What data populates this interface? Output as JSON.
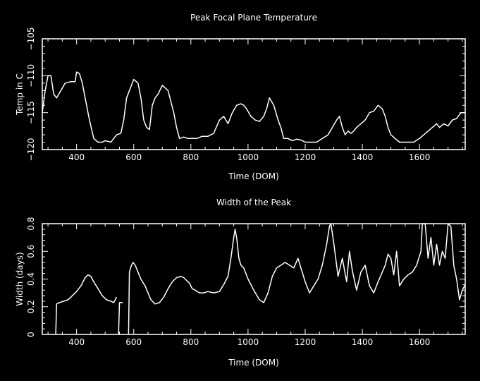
{
  "chart_data": [
    {
      "type": "line",
      "title": "Peak Focal Plane Temperature",
      "xlabel": "Time (DOM)",
      "ylabel": "Temp in C",
      "xlim": [
        280,
        1760
      ],
      "ylim": [
        -120,
        -105
      ],
      "xticks": [
        400,
        600,
        800,
        1000,
        1200,
        1400,
        1600
      ],
      "yticks": [
        -120,
        -115,
        -110,
        -105
      ],
      "xtick_labels": [
        "400",
        "600",
        "800",
        "1000",
        "1200",
        "1400",
        "1600"
      ],
      "ytick_labels": [
        "−120",
        "−115",
        "−110",
        "−105"
      ],
      "grid": false,
      "color": "#ffffff",
      "x": [
        280,
        290,
        300,
        310,
        320,
        330,
        345,
        360,
        380,
        395,
        400,
        410,
        420,
        430,
        445,
        460,
        475,
        490,
        500,
        520,
        540,
        555,
        565,
        575,
        585,
        600,
        615,
        625,
        635,
        645,
        655,
        665,
        675,
        685,
        700,
        720,
        740,
        750,
        760,
        775,
        790,
        805,
        820,
        840,
        860,
        880,
        900,
        915,
        930,
        945,
        960,
        975,
        985,
        995,
        1010,
        1025,
        1040,
        1055,
        1065,
        1075,
        1090,
        1105,
        1115,
        1125,
        1140,
        1155,
        1170,
        1185,
        1200,
        1220,
        1240,
        1260,
        1280,
        1295,
        1310,
        1320,
        1330,
        1340,
        1350,
        1360,
        1370,
        1380,
        1395,
        1410,
        1425,
        1440,
        1455,
        1470,
        1480,
        1490,
        1500,
        1515,
        1530,
        1545,
        1560,
        1580,
        1600,
        1615,
        1630,
        1645,
        1660,
        1670,
        1685,
        1700,
        1715,
        1730,
        1745,
        1760
      ],
      "y": [
        -115,
        -112,
        -110,
        -110,
        -112.5,
        -113,
        -112,
        -111,
        -110.8,
        -110.8,
        -109.5,
        -109.7,
        -111,
        -113,
        -116,
        -118.5,
        -119,
        -119,
        -118.8,
        -119,
        -118,
        -117.8,
        -116,
        -113,
        -112,
        -110.5,
        -111,
        -113,
        -116,
        -117,
        -117.3,
        -114,
        -113,
        -112.5,
        -111.3,
        -112,
        -115,
        -117,
        -118.5,
        -118.3,
        -118.5,
        -118.5,
        -118.5,
        -118.2,
        -118.2,
        -117.8,
        -116,
        -115.5,
        -116.5,
        -115,
        -114,
        -113.8,
        -114,
        -114.5,
        -115.5,
        -116,
        -116.2,
        -115.5,
        -114.5,
        -113,
        -114,
        -116,
        -117,
        -118.5,
        -118.5,
        -118.8,
        -118.6,
        -118.7,
        -119,
        -119,
        -119,
        -118.5,
        -118,
        -117,
        -116,
        -115.5,
        -117,
        -118,
        -117.5,
        -117.8,
        -117.5,
        -117,
        -116.5,
        -116,
        -115,
        -114.8,
        -114,
        -114.5,
        -115.5,
        -117,
        -118,
        -118.5,
        -119,
        -119,
        -119,
        -119,
        -118.5,
        -118,
        -117.5,
        -117,
        -116.5,
        -117,
        -116.5,
        -116.8,
        -116,
        -115.8,
        -115,
        -115
      ]
    },
    {
      "type": "line",
      "title": "Width of the Peak",
      "xlabel": "Time (DOM)",
      "ylabel": "Width (days)",
      "xlim": [
        280,
        1760
      ],
      "ylim": [
        0,
        0.8
      ],
      "xticks": [
        400,
        600,
        800,
        1000,
        1200,
        1400,
        1600
      ],
      "yticks": [
        0,
        0.2,
        0.4,
        0.6,
        0.8
      ],
      "xtick_labels": [
        "400",
        "600",
        "800",
        "1000",
        "1200",
        "1400",
        "1600"
      ],
      "ytick_labels": [
        "0",
        "0.2",
        "0.4",
        "0.6",
        "0.8"
      ],
      "grid": false,
      "color": "#ffffff",
      "segments": [
        {
          "x": [
            327,
            330,
            340,
            355,
            370,
            385,
            400,
            415,
            430,
            440,
            450,
            460,
            475,
            490,
            505,
            520,
            530,
            540
          ],
          "y": [
            0,
            0.22,
            0.23,
            0.24,
            0.25,
            0.28,
            0.31,
            0.35,
            0.41,
            0.43,
            0.42,
            0.38,
            0.33,
            0.28,
            0.25,
            0.24,
            0.23,
            0.27
          ]
        },
        {
          "x": [
            547,
            550,
            556,
            562
          ],
          "y": [
            0,
            0.23,
            0.23,
            0.23
          ]
        },
        {
          "x": [
            582,
            585,
            592,
            598,
            605,
            615,
            625,
            640,
            650,
            660,
            675,
            690,
            705,
            720,
            735,
            750,
            765,
            775,
            785,
            795,
            805,
            815,
            830,
            845,
            860,
            880,
            900,
            915,
            930,
            940,
            950,
            955,
            960,
            968,
            975,
            985,
            1000,
            1020,
            1040,
            1055,
            1070,
            1085,
            1100,
            1115,
            1130,
            1145,
            1160,
            1175,
            1185,
            1200,
            1215,
            1230,
            1245,
            1260,
            1275,
            1285,
            1290,
            1300,
            1315,
            1330,
            1345,
            1355,
            1365,
            1380,
            1395,
            1410,
            1425,
            1440,
            1455,
            1470,
            1480,
            1490,
            1500,
            1510,
            1520,
            1530,
            1545,
            1560,
            1575,
            1590,
            1605,
            1610,
            1620,
            1630,
            1640,
            1650,
            1660,
            1670,
            1680,
            1690,
            1700,
            1710,
            1720,
            1730,
            1740,
            1750,
            1760
          ],
          "y": [
            0,
            0.45,
            0.5,
            0.52,
            0.5,
            0.45,
            0.4,
            0.35,
            0.3,
            0.25,
            0.22,
            0.23,
            0.27,
            0.33,
            0.38,
            0.41,
            0.42,
            0.41,
            0.39,
            0.37,
            0.33,
            0.32,
            0.3,
            0.3,
            0.31,
            0.3,
            0.31,
            0.36,
            0.42,
            0.55,
            0.7,
            0.76,
            0.7,
            0.55,
            0.5,
            0.48,
            0.4,
            0.32,
            0.25,
            0.23,
            0.3,
            0.42,
            0.48,
            0.5,
            0.52,
            0.5,
            0.48,
            0.55,
            0.48,
            0.38,
            0.3,
            0.35,
            0.4,
            0.5,
            0.65,
            0.78,
            0.8,
            0.66,
            0.42,
            0.55,
            0.38,
            0.6,
            0.46,
            0.32,
            0.45,
            0.5,
            0.35,
            0.3,
            0.38,
            0.45,
            0.5,
            0.58,
            0.55,
            0.43,
            0.6,
            0.35,
            0.4,
            0.43,
            0.45,
            0.5,
            0.6,
            0.8,
            0.8,
            0.55,
            0.7,
            0.5,
            0.65,
            0.5,
            0.6,
            0.55,
            0.8,
            0.78,
            0.5,
            0.4,
            0.25,
            0.32,
            0.36
          ]
        }
      ]
    }
  ]
}
